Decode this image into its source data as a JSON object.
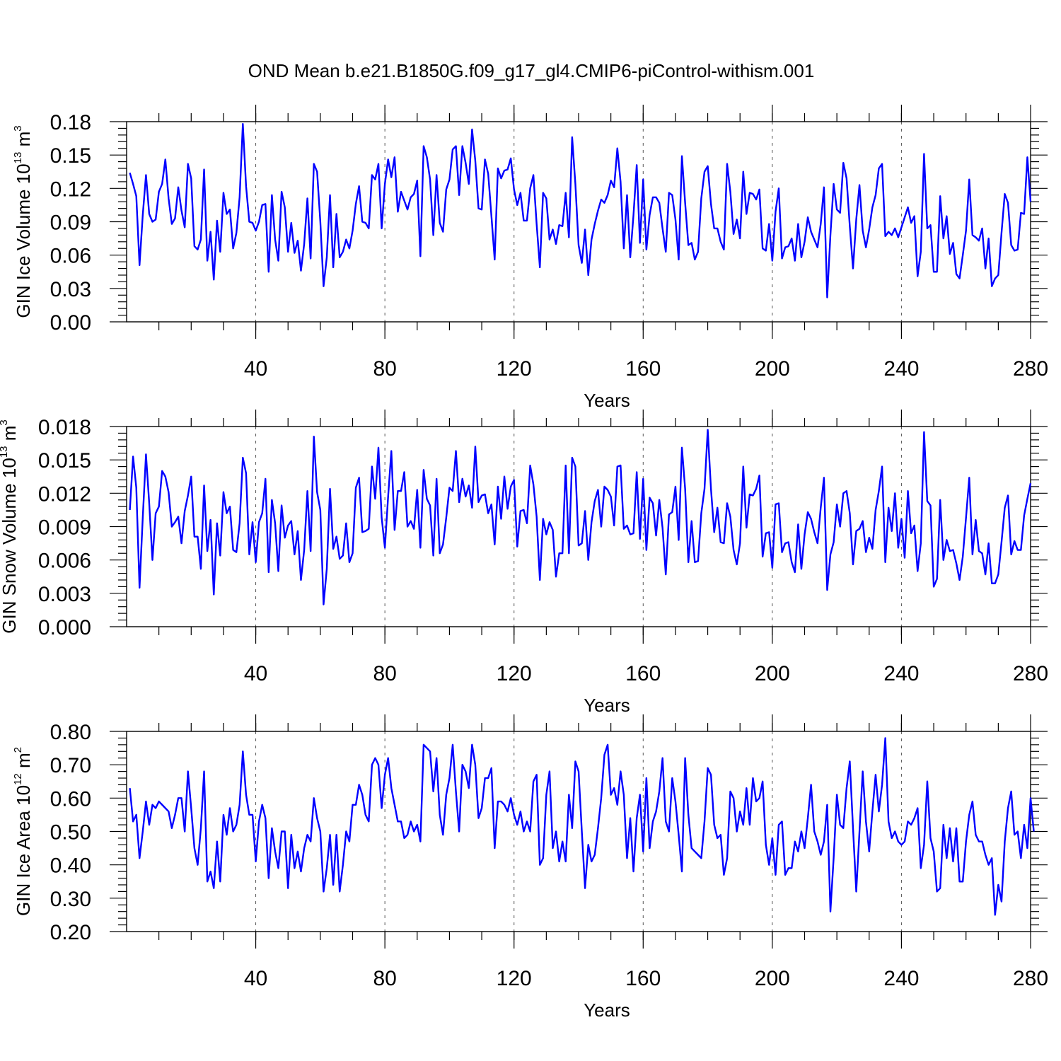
{
  "figure": {
    "title": "OND Mean b.e21.B1850G.f09_g17_gl4.CMIP6-piControl-withism.001",
    "line_color": "#0000ff"
  },
  "chart_data": [
    {
      "type": "line",
      "title": "",
      "xlabel": "Years",
      "ylabel": {
        "base": "GIN Ice Volume 10",
        "exp": "13",
        "unit": " m",
        "unit_exp": "3"
      },
      "xlim": [
        0,
        280
      ],
      "ylim": [
        0,
        0.18
      ],
      "xticks": [
        "40",
        "80",
        "120",
        "160",
        "200",
        "240",
        "280"
      ],
      "yticks": [
        "0.00",
        "0.03",
        "0.06",
        "0.09",
        "0.12",
        "0.15",
        "0.18"
      ],
      "grid_x": true,
      "series": [
        {
          "x_start": 1,
          "values": [
            0.134,
            0.124,
            0.113,
            0.051,
            0.096,
            0.132,
            0.097,
            0.09,
            0.092,
            0.117,
            0.124,
            0.146,
            0.111,
            0.088,
            0.093,
            0.121,
            0.1,
            0.085,
            0.142,
            0.129,
            0.068,
            0.065,
            0.074,
            0.137,
            0.055,
            0.081,
            0.038,
            0.091,
            0.063,
            0.116,
            0.097,
            0.101,
            0.066,
            0.08,
            0.112,
            0.178,
            0.122,
            0.09,
            0.089,
            0.082,
            0.09,
            0.105,
            0.106,
            0.045,
            0.114,
            0.074,
            0.055,
            0.117,
            0.103,
            0.063,
            0.089,
            0.062,
            0.073,
            0.046,
            0.07,
            0.111,
            0.057,
            0.142,
            0.135,
            0.09,
            0.032,
            0.058,
            0.114,
            0.049,
            0.097,
            0.058,
            0.063,
            0.074,
            0.066,
            0.082,
            0.106,
            0.122,
            0.09,
            0.089,
            0.084,
            0.132,
            0.128,
            0.142,
            0.084,
            0.124,
            0.146,
            0.13,
            0.148,
            0.099,
            0.117,
            0.109,
            0.101,
            0.112,
            0.115,
            0.127,
            0.059,
            0.158,
            0.148,
            0.128,
            0.078,
            0.132,
            0.089,
            0.081,
            0.119,
            0.128,
            0.155,
            0.158,
            0.114,
            0.158,
            0.143,
            0.124,
            0.173,
            0.145,
            0.102,
            0.101,
            0.146,
            0.133,
            0.095,
            0.056,
            0.138,
            0.129,
            0.136,
            0.137,
            0.147,
            0.119,
            0.105,
            0.116,
            0.091,
            0.091,
            0.12,
            0.132,
            0.088,
            0.049,
            0.116,
            0.111,
            0.074,
            0.083,
            0.07,
            0.087,
            0.086,
            0.116,
            0.076,
            0.166,
            0.124,
            0.069,
            0.053,
            0.083,
            0.042,
            0.074,
            0.088,
            0.1,
            0.11,
            0.107,
            0.114,
            0.127,
            0.121,
            0.156,
            0.126,
            0.066,
            0.114,
            0.058,
            0.096,
            0.141,
            0.071,
            0.128,
            0.065,
            0.096,
            0.112,
            0.112,
            0.107,
            0.084,
            0.063,
            0.116,
            0.114,
            0.092,
            0.056,
            0.149,
            0.107,
            0.069,
            0.071,
            0.056,
            0.063,
            0.111,
            0.135,
            0.14,
            0.106,
            0.084,
            0.084,
            0.072,
            0.065,
            0.142,
            0.117,
            0.079,
            0.092,
            0.075,
            0.135,
            0.097,
            0.116,
            0.115,
            0.11,
            0.119,
            0.066,
            0.064,
            0.088,
            0.055,
            0.099,
            0.12,
            0.057,
            0.067,
            0.068,
            0.075,
            0.055,
            0.088,
            0.058,
            0.072,
            0.094,
            0.081,
            0.074,
            0.067,
            0.088,
            0.121,
            0.022,
            0.078,
            0.124,
            0.101,
            0.098,
            0.143,
            0.129,
            0.086,
            0.048,
            0.092,
            0.123,
            0.082,
            0.067,
            0.083,
            0.103,
            0.114,
            0.138,
            0.142,
            0.077,
            0.081,
            0.078,
            0.084,
            0.076,
            0.085,
            0.094,
            0.103,
            0.089,
            0.095,
            0.041,
            0.063,
            0.151,
            0.084,
            0.087,
            0.045,
            0.045,
            0.113,
            0.075,
            0.095,
            0.061,
            0.071,
            0.043,
            0.039,
            0.06,
            0.082,
            0.128,
            0.078,
            0.076,
            0.073,
            0.084,
            0.048,
            0.075,
            0.032,
            0.039,
            0.042,
            0.08,
            0.115,
            0.107,
            0.069,
            0.064,
            0.065,
            0.098,
            0.097,
            0.148,
            0.108
          ]
        }
      ]
    },
    {
      "type": "line",
      "title": "",
      "xlabel": "Years",
      "ylabel": {
        "base": "GIN Snow Volume 10",
        "exp": "13",
        "unit": " m",
        "unit_exp": "3"
      },
      "xlim": [
        0,
        280
      ],
      "ylim": [
        0,
        0.018
      ],
      "xticks": [
        "40",
        "80",
        "120",
        "160",
        "200",
        "240",
        "280"
      ],
      "yticks": [
        "0.000",
        "0.003",
        "0.006",
        "0.009",
        "0.012",
        "0.015",
        "0.018"
      ],
      "grid_x": true,
      "series": [
        {
          "x_start": 1,
          "values": [
            0.0105,
            0.0153,
            0.0125,
            0.0035,
            0.0098,
            0.0155,
            0.0111,
            0.006,
            0.0102,
            0.0108,
            0.014,
            0.0135,
            0.0121,
            0.009,
            0.0094,
            0.0099,
            0.0075,
            0.0104,
            0.0118,
            0.0135,
            0.0081,
            0.0081,
            0.0052,
            0.0127,
            0.0068,
            0.0096,
            0.0029,
            0.0093,
            0.0064,
            0.0121,
            0.0102,
            0.0108,
            0.0069,
            0.0067,
            0.0093,
            0.0152,
            0.0138,
            0.0065,
            0.0094,
            0.0058,
            0.0094,
            0.0102,
            0.0133,
            0.0049,
            0.0114,
            0.0093,
            0.005,
            0.0109,
            0.008,
            0.0091,
            0.0095,
            0.0065,
            0.0086,
            0.0042,
            0.0069,
            0.0122,
            0.0068,
            0.0171,
            0.0121,
            0.0105,
            0.002,
            0.0052,
            0.0124,
            0.007,
            0.0081,
            0.0061,
            0.0064,
            0.0093,
            0.0058,
            0.0066,
            0.0125,
            0.0134,
            0.0085,
            0.0086,
            0.0088,
            0.0144,
            0.0115,
            0.0161,
            0.0098,
            0.0071,
            0.0117,
            0.0158,
            0.0087,
            0.0122,
            0.0122,
            0.0139,
            0.009,
            0.0095,
            0.0088,
            0.0123,
            0.0071,
            0.0141,
            0.0115,
            0.0109,
            0.0064,
            0.0133,
            0.0066,
            0.0074,
            0.0098,
            0.0125,
            0.0122,
            0.0158,
            0.0112,
            0.0133,
            0.0117,
            0.0127,
            0.0107,
            0.0162,
            0.0112,
            0.0118,
            0.0119,
            0.0102,
            0.011,
            0.0074,
            0.0126,
            0.0097,
            0.0135,
            0.0106,
            0.0126,
            0.0132,
            0.0072,
            0.0104,
            0.0105,
            0.0093,
            0.0145,
            0.0128,
            0.0099,
            0.0042,
            0.0097,
            0.0083,
            0.0094,
            0.0087,
            0.0045,
            0.0066,
            0.0066,
            0.0145,
            0.0066,
            0.0152,
            0.0144,
            0.0073,
            0.0075,
            0.0104,
            0.006,
            0.0094,
            0.0113,
            0.0123,
            0.009,
            0.0126,
            0.0123,
            0.0117,
            0.0091,
            0.0144,
            0.0145,
            0.0088,
            0.0091,
            0.0083,
            0.0084,
            0.0139,
            0.0079,
            0.0133,
            0.0069,
            0.0116,
            0.0111,
            0.0082,
            0.0114,
            0.0089,
            0.0047,
            0.0101,
            0.0103,
            0.0126,
            0.0078,
            0.0161,
            0.0124,
            0.0058,
            0.0095,
            0.0058,
            0.0059,
            0.0102,
            0.0124,
            0.0177,
            0.0124,
            0.0085,
            0.0107,
            0.0076,
            0.0075,
            0.0111,
            0.0099,
            0.0069,
            0.0056,
            0.0075,
            0.0144,
            0.0089,
            0.0119,
            0.0118,
            0.0124,
            0.0136,
            0.0063,
            0.0084,
            0.0085,
            0.0053,
            0.011,
            0.0111,
            0.0067,
            0.0075,
            0.0076,
            0.0058,
            0.0049,
            0.0092,
            0.0052,
            0.0083,
            0.0103,
            0.0097,
            0.0085,
            0.0075,
            0.0107,
            0.0134,
            0.0033,
            0.0065,
            0.0076,
            0.011,
            0.009,
            0.012,
            0.0122,
            0.0102,
            0.0056,
            0.0086,
            0.0088,
            0.0095,
            0.0067,
            0.008,
            0.007,
            0.0105,
            0.0122,
            0.0144,
            0.0058,
            0.0107,
            0.0086,
            0.012,
            0.0071,
            0.0097,
            0.0062,
            0.0122,
            0.0084,
            0.0091,
            0.005,
            0.0075,
            0.0175,
            0.0113,
            0.0109,
            0.0036,
            0.0043,
            0.0114,
            0.006,
            0.0078,
            0.0068,
            0.0069,
            0.0057,
            0.0042,
            0.0063,
            0.0098,
            0.0134,
            0.0065,
            0.0096,
            0.0068,
            0.0066,
            0.0047,
            0.0075,
            0.0039,
            0.0039,
            0.0047,
            0.0076,
            0.0107,
            0.0118,
            0.0065,
            0.0077,
            0.0069,
            0.0069,
            0.01,
            0.0115,
            0.0129
          ]
        }
      ]
    },
    {
      "type": "line",
      "title": "",
      "xlabel": "Years",
      "ylabel": {
        "base": "GIN Ice Area 10",
        "exp": "12",
        "unit": " m",
        "unit_exp": "2"
      },
      "xlim": [
        0,
        280
      ],
      "ylim": [
        0.2,
        0.8
      ],
      "xticks": [
        "40",
        "80",
        "120",
        "160",
        "200",
        "240",
        "280"
      ],
      "yticks": [
        "0.20",
        "0.30",
        "0.40",
        "0.50",
        "0.60",
        "0.70",
        "0.80"
      ],
      "grid_x": true,
      "series": [
        {
          "x_start": 1,
          "values": [
            0.63,
            0.53,
            0.55,
            0.42,
            0.5,
            0.59,
            0.52,
            0.58,
            0.57,
            0.59,
            0.58,
            0.57,
            0.56,
            0.51,
            0.55,
            0.6,
            0.6,
            0.5,
            0.68,
            0.57,
            0.45,
            0.4,
            0.51,
            0.68,
            0.35,
            0.38,
            0.33,
            0.47,
            0.35,
            0.55,
            0.49,
            0.57,
            0.5,
            0.52,
            0.58,
            0.74,
            0.61,
            0.55,
            0.55,
            0.41,
            0.53,
            0.58,
            0.54,
            0.36,
            0.51,
            0.44,
            0.39,
            0.5,
            0.5,
            0.33,
            0.49,
            0.39,
            0.44,
            0.38,
            0.45,
            0.49,
            0.47,
            0.6,
            0.54,
            0.5,
            0.32,
            0.39,
            0.49,
            0.34,
            0.49,
            0.32,
            0.4,
            0.5,
            0.47,
            0.58,
            0.58,
            0.64,
            0.61,
            0.55,
            0.53,
            0.7,
            0.72,
            0.7,
            0.57,
            0.67,
            0.72,
            0.63,
            0.58,
            0.53,
            0.53,
            0.48,
            0.49,
            0.53,
            0.5,
            0.52,
            0.47,
            0.76,
            0.75,
            0.74,
            0.62,
            0.72,
            0.55,
            0.49,
            0.61,
            0.66,
            0.76,
            0.62,
            0.5,
            0.7,
            0.68,
            0.63,
            0.76,
            0.7,
            0.54,
            0.57,
            0.66,
            0.66,
            0.69,
            0.45,
            0.59,
            0.59,
            0.58,
            0.56,
            0.6,
            0.55,
            0.52,
            0.56,
            0.5,
            0.53,
            0.5,
            0.65,
            0.67,
            0.4,
            0.42,
            0.61,
            0.68,
            0.45,
            0.5,
            0.41,
            0.47,
            0.41,
            0.61,
            0.51,
            0.71,
            0.68,
            0.5,
            0.33,
            0.46,
            0.41,
            0.43,
            0.51,
            0.6,
            0.73,
            0.76,
            0.61,
            0.63,
            0.58,
            0.68,
            0.61,
            0.42,
            0.54,
            0.38,
            0.54,
            0.61,
            0.44,
            0.66,
            0.45,
            0.53,
            0.56,
            0.62,
            0.72,
            0.53,
            0.5,
            0.66,
            0.59,
            0.49,
            0.38,
            0.72,
            0.55,
            0.45,
            0.44,
            0.43,
            0.42,
            0.53,
            0.69,
            0.67,
            0.52,
            0.48,
            0.49,
            0.37,
            0.42,
            0.62,
            0.6,
            0.5,
            0.56,
            0.52,
            0.63,
            0.52,
            0.66,
            0.59,
            0.6,
            0.65,
            0.46,
            0.4,
            0.48,
            0.37,
            0.52,
            0.53,
            0.37,
            0.39,
            0.39,
            0.47,
            0.44,
            0.5,
            0.45,
            0.54,
            0.64,
            0.5,
            0.47,
            0.43,
            0.47,
            0.58,
            0.26,
            0.42,
            0.61,
            0.52,
            0.51,
            0.63,
            0.71,
            0.51,
            0.32,
            0.5,
            0.68,
            0.53,
            0.44,
            0.56,
            0.67,
            0.56,
            0.64,
            0.78,
            0.53,
            0.48,
            0.5,
            0.47,
            0.46,
            0.47,
            0.53,
            0.52,
            0.54,
            0.57,
            0.39,
            0.46,
            0.65,
            0.48,
            0.44,
            0.32,
            0.33,
            0.52,
            0.42,
            0.51,
            0.41,
            0.51,
            0.35,
            0.35,
            0.47,
            0.55,
            0.59,
            0.49,
            0.47,
            0.47,
            0.43,
            0.4,
            0.42,
            0.25,
            0.34,
            0.29,
            0.47,
            0.57,
            0.62,
            0.49,
            0.5,
            0.42,
            0.52,
            0.45,
            0.6,
            0.5
          ]
        }
      ]
    }
  ]
}
